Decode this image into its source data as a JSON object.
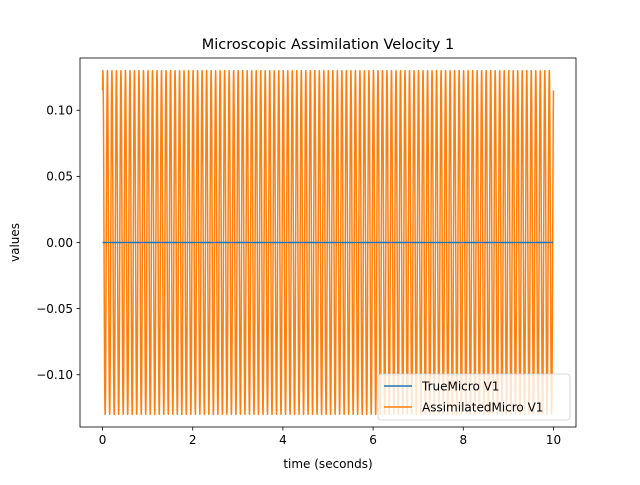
{
  "chart_data": {
    "type": "line",
    "title": "Microscopic Assimilation Velocity 1",
    "xlabel": "time (seconds)",
    "ylabel": "values",
    "xlim": [
      -0.5,
      10.5
    ],
    "ylim": [
      -0.1395,
      0.1395
    ],
    "xticks": [
      0,
      2,
      4,
      6,
      8,
      10
    ],
    "xtick_labels": [
      "0",
      "2",
      "4",
      "6",
      "8",
      "10"
    ],
    "yticks": [
      -0.1,
      -0.05,
      0.0,
      0.05,
      0.1
    ],
    "ytick_labels": [
      "−0.10",
      "−0.05",
      "0.00",
      "0.05",
      "0.10"
    ],
    "grid": false,
    "legend_position": "lower-right",
    "series": [
      {
        "name": "TrueMicro V1",
        "color": "#1f77b4",
        "x": [
          0,
          10
        ],
        "y": [
          0.0,
          0.0
        ]
      },
      {
        "name": "AssimilatedMicro V1",
        "color": "#ff7f0e",
        "signal": {
          "kind": "sinusoid",
          "amplitude": 0.13,
          "initial_value": 0.115,
          "cycles_per_second": 10,
          "x_start": 0,
          "x_end": 10
        }
      }
    ]
  }
}
